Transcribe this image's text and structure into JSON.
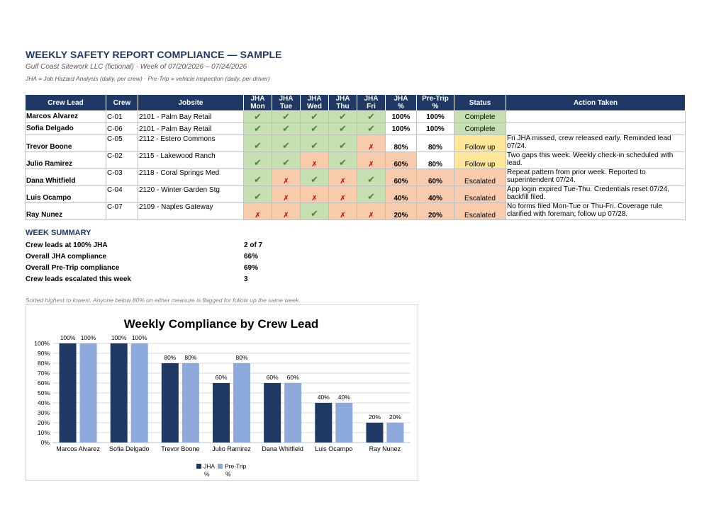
{
  "header": {
    "title": "WEEKLY SAFETY REPORT COMPLIANCE — SAMPLE",
    "subtitle": "Gulf Coast Sitework LLC (fictional) · Week of 07/20/2026 – 07/24/2026",
    "note": "JHA = Job Hazard Analysis (daily, per crew) · Pre-Trip = vehicle inspection (daily, per driver)"
  },
  "table": {
    "columns": [
      "Crew Lead",
      "Crew",
      "Jobsite",
      "JHA\nMon",
      "JHA\nTue",
      "JHA\nWed",
      "JHA\nThu",
      "JHA\nFri",
      "JHA\n%",
      "Pre-Trip\n%",
      "Status",
      "Action Taken"
    ],
    "check_symbol": "✔",
    "miss_symbol": "✗",
    "rows": [
      {
        "lead": "Marcos Alvarez",
        "crew": "C-01",
        "site": "2101 - Palm Bay Retail",
        "days": [
          1,
          1,
          1,
          1,
          1
        ],
        "jha": "100%",
        "pretrip": "100%",
        "status": "Complete",
        "action": ""
      },
      {
        "lead": "Sofia Delgado",
        "crew": "C-06",
        "site": "2101 - Palm Bay Retail",
        "days": [
          1,
          1,
          1,
          1,
          1
        ],
        "jha": "100%",
        "pretrip": "100%",
        "status": "Complete",
        "action": ""
      },
      {
        "lead": "Trevor Boone",
        "crew": "C-05",
        "site": "2112 - Estero Commons",
        "days": [
          1,
          1,
          1,
          1,
          0
        ],
        "jha": "80%",
        "pretrip": "80%",
        "status": "Follow up",
        "action": "Fri JHA missed, crew released early. Reminded lead 07/24."
      },
      {
        "lead": "Julio Ramirez",
        "crew": "C-02",
        "site": "2115 - Lakewood Ranch",
        "days": [
          1,
          1,
          0,
          1,
          0
        ],
        "jha": "60%",
        "pretrip": "80%",
        "status": "Follow up",
        "action": "Two gaps this week. Weekly check-in scheduled with lead."
      },
      {
        "lead": "Dana Whitfield",
        "crew": "C-03",
        "site": "2118 - Coral Springs Med",
        "days": [
          1,
          0,
          1,
          0,
          1
        ],
        "jha": "60%",
        "pretrip": "60%",
        "status": "Escalated",
        "action": "Repeat pattern from prior week. Reported to superintendent 07/24."
      },
      {
        "lead": "Luis Ocampo",
        "crew": "C-04",
        "site": "2120 - Winter Garden Stg",
        "days": [
          1,
          0,
          0,
          0,
          1
        ],
        "jha": "40%",
        "pretrip": "40%",
        "status": "Escalated",
        "action": "App login expired Tue-Thu. Credentials reset 07/24, backfill filed."
      },
      {
        "lead": "Ray Nunez",
        "crew": "C-07",
        "site": "2109 - Naples Gateway",
        "days": [
          0,
          0,
          1,
          0,
          0
        ],
        "jha": "20%",
        "pretrip": "20%",
        "status": "Escalated",
        "action": "No forms filed Mon-Tue or Thu-Fri. Coverage rule clarified with foreman; follow up 07/28."
      }
    ]
  },
  "summary": {
    "title": "WEEK SUMMARY",
    "rows": [
      {
        "label": "Crew leads at 100% JHA",
        "value": "2 of 7"
      },
      {
        "label": "Overall JHA compliance",
        "value": "66%"
      },
      {
        "label": "Overall Pre-Trip compliance",
        "value": "69%"
      },
      {
        "label": "Crew leads escalated this week",
        "value": "3"
      }
    ]
  },
  "sort_note": "Sorted highest to lowest. Anyone below 80% on either measure is flagged for follow up the same week.",
  "colors": {
    "navy": "#1F3864",
    "light_blue": "#8EA9DB",
    "ok_fill": "#C6E0B4",
    "bad_fill": "#F8CBAD",
    "follow_fill": "#FFE699"
  },
  "chart_data": {
    "type": "bar",
    "title": "Weekly Compliance by Crew Lead",
    "categories": [
      "Marcos Alvarez",
      "Sofia Delgado",
      "Trevor Boone",
      "Julio Ramirez",
      "Dana Whitfield",
      "Luis Ocampo",
      "Ray Nunez"
    ],
    "series": [
      {
        "name": "JHA %",
        "values": [
          100,
          100,
          80,
          60,
          60,
          40,
          20
        ],
        "labels": [
          "100%",
          "100%",
          "80%",
          "60%",
          "60%",
          "40%",
          "20%"
        ]
      },
      {
        "name": "Pre-Trip %",
        "values": [
          100,
          100,
          80,
          80,
          60,
          40,
          20
        ],
        "labels": [
          "100%",
          "100%",
          "80%",
          "80%",
          "60%",
          "40%",
          "20%"
        ]
      }
    ],
    "y_ticks": [
      "0%",
      "10%",
      "20%",
      "30%",
      "40%",
      "50%",
      "60%",
      "70%",
      "80%",
      "90%",
      "100%"
    ],
    "ylim": [
      0,
      100
    ],
    "grid": true,
    "legend": "bottom",
    "legend_labels": [
      {
        "line1": "JHA",
        "line2": "%"
      },
      {
        "line1": "Pre-Trip",
        "line2": "%"
      }
    ]
  }
}
